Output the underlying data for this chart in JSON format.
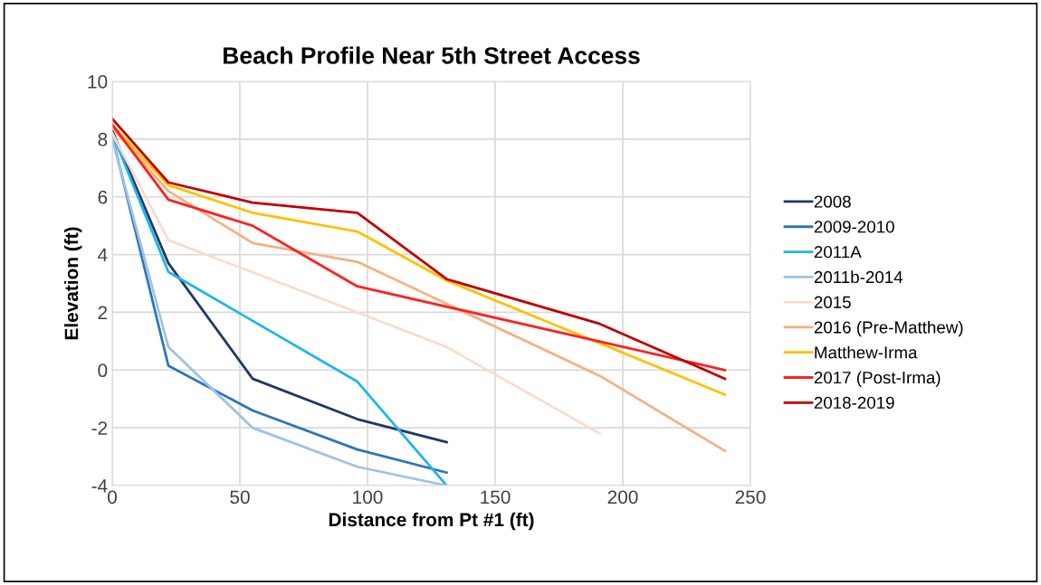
{
  "chart_data": {
    "type": "line",
    "title": "Beach Profile Near 5th Street Access",
    "xlabel": "Distance from Pt #1 (ft)",
    "ylabel": "Elevation (ft)",
    "xlim": [
      0,
      250
    ],
    "xticks": [
      0,
      50,
      100,
      150,
      200,
      250
    ],
    "ylim": [
      -4,
      10
    ],
    "yticks": [
      -4,
      -2,
      0,
      2,
      4,
      6,
      8,
      10
    ],
    "grid": true,
    "legend": "right",
    "marker": "none",
    "line_style": "solid",
    "series": [
      {
        "name": "2008",
        "color": "#203864",
        "x": [
          0,
          22,
          55,
          96,
          131
        ],
        "values": [
          8.3,
          3.7,
          -0.3,
          -1.7,
          -2.5
        ]
      },
      {
        "name": "2009-2010",
        "color": "#2e75b6",
        "x": [
          0,
          22,
          55,
          96,
          131
        ],
        "values": [
          8.1,
          0.15,
          -1.4,
          -2.75,
          -3.55
        ]
      },
      {
        "name": "2011A",
        "color": "#1fb5e8",
        "x": [
          0,
          22,
          96,
          131
        ],
        "values": [
          8.2,
          3.4,
          -0.4,
          -4.0
        ]
      },
      {
        "name": "2011b-2014",
        "color": "#9dc3e6",
        "x": [
          0,
          22,
          55,
          96,
          131
        ],
        "values": [
          8.0,
          0.8,
          -2.0,
          -3.35,
          -4.0
        ]
      },
      {
        "name": "2015",
        "color": "#f8dccc",
        "x": [
          0,
          22,
          96,
          131,
          191
        ],
        "values": [
          8.2,
          4.5,
          2.0,
          0.8,
          -2.2
        ]
      },
      {
        "name": "2016 (Pre-Matthew)",
        "color": "#f4b183",
        "x": [
          0,
          22,
          55,
          96,
          191,
          240
        ],
        "values": [
          8.4,
          6.2,
          4.4,
          3.75,
          -0.2,
          -2.8
        ]
      },
      {
        "name": "Matthew-Irma",
        "color": "#ffc000",
        "x": [
          0,
          22,
          55,
          96,
          131,
          240
        ],
        "values": [
          8.5,
          6.4,
          5.45,
          4.8,
          3.1,
          -0.85
        ]
      },
      {
        "name": "2017 (Post-Irma)",
        "color": "#ff2020",
        "x": [
          0,
          22,
          55,
          96,
          240
        ],
        "values": [
          8.5,
          5.9,
          5.0,
          2.9,
          0.0
        ]
      },
      {
        "name": "2018-2019",
        "color": "#c00000",
        "x": [
          0,
          22,
          55,
          96,
          131,
          191,
          240
        ],
        "values": [
          8.7,
          6.5,
          5.8,
          5.45,
          3.15,
          1.6,
          -0.3
        ]
      }
    ]
  }
}
